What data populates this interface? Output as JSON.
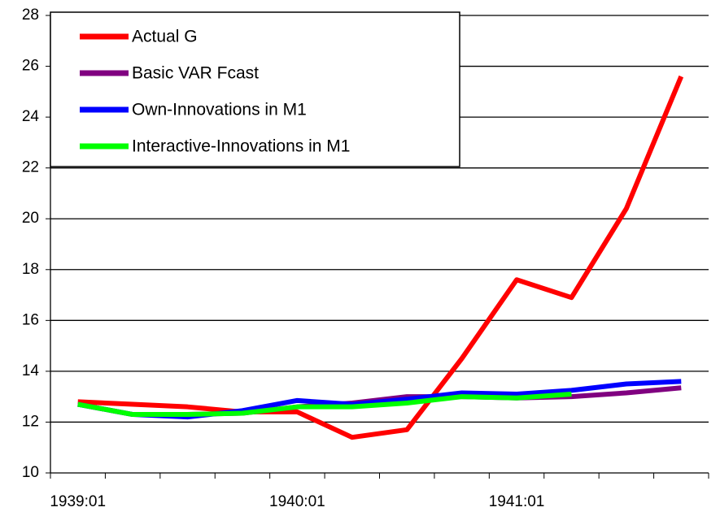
{
  "chart_data": {
    "type": "line",
    "categories": [
      "1939:01",
      null,
      null,
      null,
      "1940:01",
      null,
      null,
      null,
      "1941:01",
      null,
      null,
      null
    ],
    "series": [
      {
        "name": "Actual G",
        "color": "#ff0000",
        "values": [
          12.8,
          12.7,
          12.6,
          12.4,
          12.4,
          11.4,
          11.7,
          14.5,
          17.6,
          16.9,
          20.4,
          25.6
        ]
      },
      {
        "name": "Basic VAR Fcast",
        "color": "#800080",
        "values": [
          12.7,
          12.3,
          12.3,
          12.35,
          12.6,
          12.75,
          13.0,
          13.0,
          12.95,
          13.0,
          13.15,
          13.35
        ]
      },
      {
        "name": "Own-Innovations in M1",
        "color": "#0000ff",
        "values": [
          12.7,
          12.3,
          12.2,
          12.45,
          12.85,
          12.7,
          12.9,
          13.15,
          13.1,
          13.25,
          13.5,
          13.6
        ]
      },
      {
        "name": "Interactive-Innovations in M1",
        "color": "#00ff00",
        "values": [
          12.7,
          12.3,
          12.3,
          12.35,
          12.6,
          12.6,
          12.75,
          13.0,
          12.95,
          13.1,
          null,
          null
        ]
      }
    ],
    "ylim": [
      10,
      28
    ],
    "yticks": [
      10,
      12,
      14,
      16,
      18,
      20,
      22,
      24,
      26,
      28
    ],
    "grid": true,
    "legend": "top-left"
  }
}
